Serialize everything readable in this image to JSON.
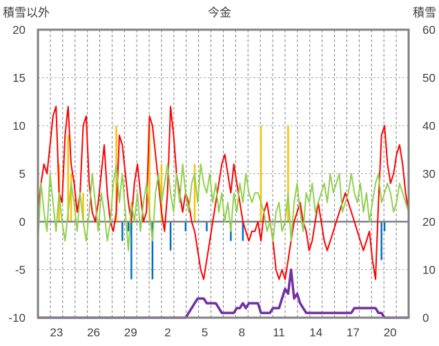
{
  "chart_data": {
    "type": "line",
    "title": "今金",
    "ylabel_left": "積雪以外",
    "ylabel_right": "積雪",
    "ylim_left": [
      -10,
      20
    ],
    "ylim_right": [
      0,
      60
    ],
    "yticks_left": [
      "20",
      "15",
      "10",
      "5",
      "0",
      "-5",
      "-10"
    ],
    "yticks_right": [
      "60",
      "50",
      "40",
      "30",
      "20",
      "10",
      "0"
    ],
    "xticks": [
      "23",
      "26",
      "29",
      "2",
      "5",
      "8",
      "11",
      "14",
      "17",
      "20"
    ],
    "grid": true,
    "colors": {
      "temperature": "#ff0000",
      "humidity_proxy": "#92d050",
      "precip": "#ffc000",
      "negative_bar": "#0070c0",
      "snow_depth": "#7030a0",
      "zero_line": "#7f7f7f",
      "frame": "#808080"
    },
    "series": [
      {
        "key": "temperature",
        "axis": "left",
        "values": [
          1,
          4,
          6,
          5,
          8,
          11,
          12,
          3,
          2,
          9,
          12,
          6,
          4,
          1,
          3,
          10,
          11,
          4,
          1,
          0,
          2,
          5,
          8,
          3,
          0,
          -1,
          1,
          9,
          8,
          5,
          2,
          0,
          4,
          6,
          3,
          0,
          1,
          11,
          10,
          7,
          4,
          1,
          -1,
          3,
          12,
          9,
          5,
          3,
          1,
          3,
          2,
          0,
          -1,
          -3,
          -5,
          -6,
          -4,
          -2,
          0,
          2,
          4,
          6,
          7,
          5,
          3,
          6,
          4,
          2,
          0,
          -1,
          -2,
          -1,
          -1,
          0,
          -2,
          1,
          2,
          0,
          -2,
          -5,
          -6,
          -5,
          -6,
          -4,
          -2,
          0,
          1,
          2,
          0,
          -1,
          -3,
          -2,
          0,
          2,
          0,
          -2,
          -3,
          -2,
          -1,
          0,
          1,
          2,
          3,
          2,
          1,
          0,
          -1,
          -2,
          -3,
          -2,
          -1,
          -4,
          -6,
          2,
          9,
          10,
          6,
          4,
          5,
          7,
          8,
          6,
          3,
          1
        ]
      },
      {
        "key": "humidity_proxy",
        "axis": "left",
        "values": [
          -2,
          4,
          1,
          -1,
          5,
          2,
          -1,
          3,
          0,
          -2,
          1,
          4,
          2,
          -1,
          3,
          0,
          -2,
          1,
          5,
          2,
          -1,
          3,
          1,
          -2,
          0,
          4,
          6,
          2,
          5,
          1,
          -3,
          2,
          0,
          3,
          -1,
          2,
          4,
          1,
          -2,
          3,
          5,
          2,
          4,
          6,
          3,
          1,
          5,
          2,
          6,
          3,
          1,
          4,
          5,
          2,
          6,
          4,
          3,
          5,
          2,
          4,
          1,
          3,
          0,
          2,
          -1,
          3,
          1,
          4,
          2,
          5,
          3,
          2,
          3,
          3,
          2,
          1,
          -1,
          0,
          -2,
          1,
          2,
          -1,
          0,
          3,
          -2,
          2,
          4,
          1,
          -1,
          3,
          2,
          4,
          1,
          2,
          3,
          4,
          2,
          5,
          3,
          4,
          5,
          1,
          2,
          3,
          5,
          3,
          2,
          4,
          1,
          3,
          0,
          2,
          4,
          5,
          2,
          3,
          4,
          3,
          1,
          2,
          4,
          3,
          2,
          1
        ]
      },
      {
        "key": "snow_depth",
        "axis": "right",
        "values": [
          0,
          0,
          0,
          0,
          0,
          0,
          0,
          0,
          0,
          0,
          0,
          0,
          0,
          0,
          0,
          0,
          0,
          0,
          0,
          0,
          0,
          0,
          0,
          0,
          0,
          0,
          0,
          0,
          0,
          0,
          0,
          0,
          0,
          0,
          0,
          0,
          0,
          0,
          0,
          0,
          0,
          0,
          0,
          0,
          0,
          0,
          0,
          0,
          0,
          0,
          1,
          2,
          3,
          4,
          4,
          4,
          3,
          3,
          3,
          3,
          2,
          1,
          1,
          1,
          1,
          1,
          2,
          2,
          3,
          2,
          3,
          3,
          3,
          3,
          1,
          1,
          1,
          1,
          2,
          2,
          2,
          4,
          6,
          5,
          10,
          4,
          5,
          3,
          2,
          1,
          1,
          1,
          1,
          1,
          1,
          1,
          1,
          1,
          1,
          1,
          1,
          1,
          1,
          1,
          1,
          2,
          2,
          2,
          2,
          2,
          2,
          2,
          2,
          1,
          1,
          0,
          0,
          0,
          0,
          0,
          0,
          0,
          0,
          0
        ]
      }
    ],
    "precip_bars": [
      {
        "i": 7,
        "v": 6
      },
      {
        "i": 10,
        "v": 9
      },
      {
        "i": 11,
        "v": 5
      },
      {
        "i": 15,
        "v": 3
      },
      {
        "i": 26,
        "v": 10
      },
      {
        "i": 37,
        "v": 10
      },
      {
        "i": 41,
        "v": 6
      },
      {
        "i": 52,
        "v": 6
      },
      {
        "i": 74,
        "v": 10
      },
      {
        "i": 83,
        "v": 10
      }
    ],
    "negative_bars": [
      {
        "i": 28,
        "v": -2
      },
      {
        "i": 30,
        "v": -1
      },
      {
        "i": 31,
        "v": -6
      },
      {
        "i": 38,
        "v": -6
      },
      {
        "i": 44,
        "v": -3
      },
      {
        "i": 49,
        "v": -1
      },
      {
        "i": 56,
        "v": -1
      },
      {
        "i": 64,
        "v": -2
      },
      {
        "i": 68,
        "v": -2
      },
      {
        "i": 114,
        "v": -4
      },
      {
        "i": 115,
        "v": -1
      }
    ]
  }
}
